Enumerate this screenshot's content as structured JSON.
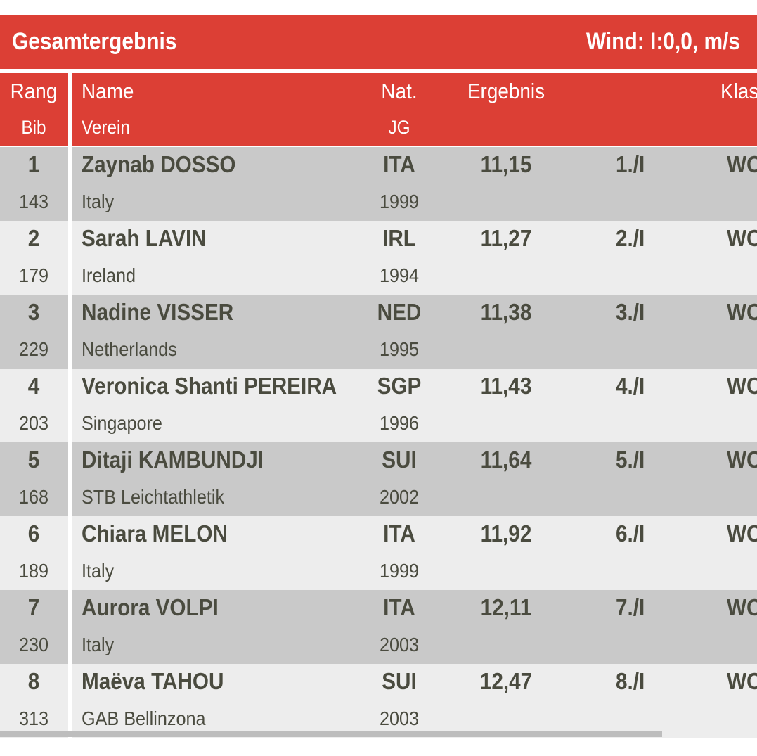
{
  "title_bar": {
    "title": "Gesamtergebnis",
    "wind": "Wind: I:0,0, m/s"
  },
  "header": {
    "rang": "Rang",
    "bib": "Bib",
    "name": "Name",
    "verein": "Verein",
    "nat": "Nat.",
    "jg": "JG",
    "ergebnis": "Ergebnis",
    "klasse": "Klas"
  },
  "rows": [
    {
      "rank": "1",
      "bib": "143",
      "name": "Zaynab DOSSO",
      "club": "Italy",
      "nat": "ITA",
      "year": "1999",
      "result": "11,15",
      "place": "1./I",
      "klasse": "WC"
    },
    {
      "rank": "2",
      "bib": "179",
      "name": "Sarah LAVIN",
      "club": "Ireland",
      "nat": "IRL",
      "year": "1994",
      "result": "11,27",
      "place": "2./I",
      "klasse": "WC"
    },
    {
      "rank": "3",
      "bib": "229",
      "name": "Nadine VISSER",
      "club": "Netherlands",
      "nat": "NED",
      "year": "1995",
      "result": "11,38",
      "place": "3./I",
      "klasse": "WC"
    },
    {
      "rank": "4",
      "bib": "203",
      "name": "Veronica Shanti PEREIRA",
      "club": "Singapore",
      "nat": "SGP",
      "year": "1996",
      "result": "11,43",
      "place": "4./I",
      "klasse": "WC"
    },
    {
      "rank": "5",
      "bib": "168",
      "name": "Ditaji KAMBUNDJI",
      "club": "STB Leichtathletik",
      "nat": "SUI",
      "year": "2002",
      "result": "11,64",
      "place": "5./I",
      "klasse": "WC"
    },
    {
      "rank": "6",
      "bib": "189",
      "name": "Chiara MELON",
      "club": "Italy",
      "nat": "ITA",
      "year": "1999",
      "result": "11,92",
      "place": "6./I",
      "klasse": "WC"
    },
    {
      "rank": "7",
      "bib": "230",
      "name": "Aurora VOLPI",
      "club": "Italy",
      "nat": "ITA",
      "year": "2003",
      "result": "12,11",
      "place": "7./I",
      "klasse": "WC"
    },
    {
      "rank": "8",
      "bib": "313",
      "name": "Maëva TAHOU",
      "club": "GAB Bellinzona",
      "nat": "SUI",
      "year": "2003",
      "result": "12,47",
      "place": "8./I",
      "klasse": "WC"
    }
  ]
}
